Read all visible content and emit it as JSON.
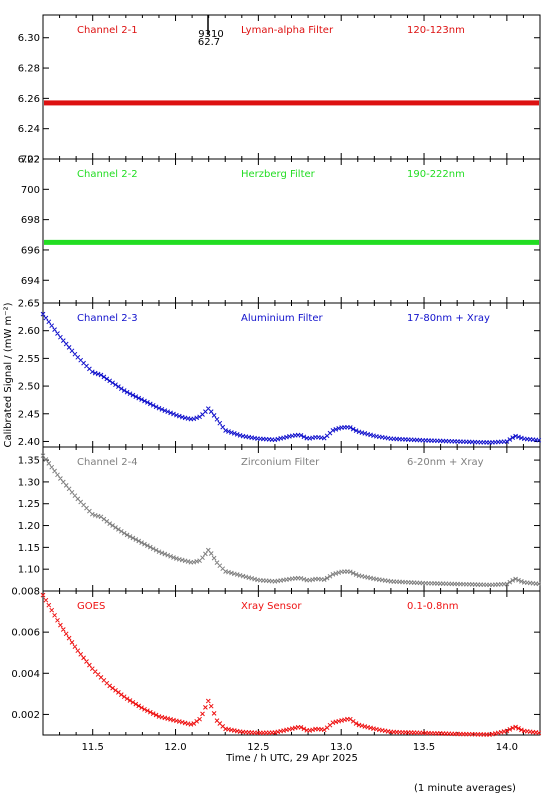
{
  "figure": {
    "ylabel": "Calibrated Signal / (mW m⁻²)",
    "xlabel": "Time / h UTC, 29 Apr 2025",
    "note": "(1 minute averages)",
    "top_marker": {
      "line1": "9310",
      "line2": "62.7"
    }
  },
  "chart_data": [
    {
      "type": "scatter",
      "panel": "Channel 2-1",
      "header": [
        "Channel 2-1",
        "Lyman-alpha Filter",
        "120-123nm"
      ],
      "color": "#dd1111",
      "xlim": [
        11.2,
        14.2
      ],
      "ylim": [
        6.22,
        6.315
      ],
      "yticks": [
        "6.22",
        "6.24",
        "6.26",
        "6.28",
        "6.30"
      ],
      "xticks": [
        "11.5",
        "12.0",
        "12.5",
        "13.0",
        "13.5",
        "14.0"
      ],
      "series": [
        {
          "x": [
            11.2,
            14.2
          ],
          "y": [
            6.257,
            6.257
          ],
          "style": "flat"
        }
      ]
    },
    {
      "type": "scatter",
      "panel": "Channel 2-2",
      "header": [
        "Channel 2-2",
        "Herzberg Filter",
        "190-222nm"
      ],
      "color": "#22dd22",
      "xlim": [
        11.2,
        14.2
      ],
      "ylim": [
        692.5,
        702
      ],
      "yticks": [
        "694",
        "696",
        "698",
        "700",
        "702"
      ],
      "xticks": [
        "11.5",
        "12.0",
        "12.5",
        "13.0",
        "13.5",
        "14.0"
      ],
      "series": [
        {
          "x": [
            11.2,
            14.2
          ],
          "y": [
            696.5,
            696.5
          ],
          "style": "flat"
        }
      ]
    },
    {
      "type": "scatter",
      "panel": "Channel 2-3",
      "header": [
        "Channel 2-3",
        "Aluminium Filter",
        "17-80nm + Xray"
      ],
      "color": "#1111cc",
      "xlim": [
        11.2,
        14.2
      ],
      "ylim": [
        2.39,
        2.65
      ],
      "yticks": [
        "2.40",
        "2.45",
        "2.50",
        "2.55",
        "2.60",
        "2.65"
      ],
      "xticks": [
        "11.5",
        "12.0",
        "12.5",
        "13.0",
        "13.5",
        "14.0"
      ],
      "series": [
        {
          "x": [
            11.2,
            11.3,
            11.4,
            11.5,
            11.55,
            11.6,
            11.7,
            11.8,
            11.9,
            12.0,
            12.05,
            12.1,
            12.15,
            12.2,
            12.25,
            12.3,
            12.4,
            12.5,
            12.6,
            12.7,
            12.75,
            12.8,
            12.85,
            12.9,
            12.95,
            13.0,
            13.05,
            13.1,
            13.2,
            13.3,
            13.5,
            13.7,
            13.9,
            14.0,
            14.05,
            14.1,
            14.2
          ],
          "y": [
            2.63,
            2.59,
            2.555,
            2.525,
            2.52,
            2.51,
            2.49,
            2.475,
            2.46,
            2.448,
            2.443,
            2.44,
            2.445,
            2.46,
            2.44,
            2.42,
            2.41,
            2.405,
            2.403,
            2.41,
            2.412,
            2.405,
            2.408,
            2.406,
            2.42,
            2.425,
            2.426,
            2.418,
            2.41,
            2.405,
            2.402,
            2.4,
            2.398,
            2.4,
            2.41,
            2.405,
            2.402
          ]
        }
      ]
    },
    {
      "type": "scatter",
      "panel": "Channel 2-4",
      "header": [
        "Channel 2-4",
        "Zirconium Filter",
        "6-20nm + Xray"
      ],
      "color": "#7f7f7f",
      "xlim": [
        11.2,
        14.2
      ],
      "ylim": [
        1.05,
        1.38
      ],
      "yticks": [
        "1.10",
        "1.15",
        "1.20",
        "1.25",
        "1.30",
        "1.35"
      ],
      "xticks": [
        "11.5",
        "12.0",
        "12.5",
        "13.0",
        "13.5",
        "14.0"
      ],
      "series": [
        {
          "x": [
            11.2,
            11.3,
            11.4,
            11.5,
            11.55,
            11.6,
            11.7,
            11.8,
            11.9,
            12.0,
            12.05,
            12.1,
            12.15,
            12.2,
            12.25,
            12.3,
            12.4,
            12.5,
            12.6,
            12.7,
            12.75,
            12.8,
            12.85,
            12.9,
            12.95,
            13.0,
            13.05,
            13.1,
            13.2,
            13.3,
            13.5,
            13.7,
            13.9,
            14.0,
            14.05,
            14.1,
            14.2
          ],
          "y": [
            1.36,
            1.31,
            1.265,
            1.225,
            1.22,
            1.205,
            1.18,
            1.16,
            1.14,
            1.125,
            1.12,
            1.115,
            1.12,
            1.145,
            1.115,
            1.095,
            1.085,
            1.075,
            1.072,
            1.078,
            1.08,
            1.074,
            1.078,
            1.076,
            1.088,
            1.094,
            1.095,
            1.086,
            1.078,
            1.072,
            1.068,
            1.066,
            1.064,
            1.066,
            1.078,
            1.07,
            1.066
          ]
        }
      ]
    },
    {
      "type": "scatter",
      "panel": "GOES",
      "header": [
        "GOES",
        "Xray Sensor",
        "0.1-0.8nm"
      ],
      "color": "#ee1111",
      "xlim": [
        11.2,
        14.2
      ],
      "ylim": [
        0.001,
        0.008
      ],
      "yticks": [
        "0.002",
        "0.004",
        "0.006",
        "0.008"
      ],
      "xticks": [
        "11.5",
        "12.0",
        "12.5",
        "13.0",
        "13.5",
        "14.0"
      ],
      "series": [
        {
          "x": [
            11.2,
            11.3,
            11.4,
            11.5,
            11.6,
            11.7,
            11.8,
            11.9,
            12.0,
            12.05,
            12.1,
            12.15,
            12.2,
            12.25,
            12.3,
            12.4,
            12.5,
            12.6,
            12.7,
            12.75,
            12.8,
            12.85,
            12.9,
            12.95,
            13.0,
            13.05,
            13.1,
            13.2,
            13.3,
            13.5,
            13.7,
            13.9,
            14.0,
            14.05,
            14.1,
            14.2
          ],
          "y": [
            0.0078,
            0.0064,
            0.0052,
            0.0042,
            0.0034,
            0.0028,
            0.0023,
            0.0019,
            0.0017,
            0.0016,
            0.0015,
            0.0018,
            0.0027,
            0.0017,
            0.0013,
            0.00115,
            0.0011,
            0.00112,
            0.0013,
            0.0014,
            0.0012,
            0.0013,
            0.00125,
            0.0016,
            0.0017,
            0.0018,
            0.0015,
            0.0013,
            0.00115,
            0.0011,
            0.00105,
            0.00102,
            0.0012,
            0.0014,
            0.0012,
            0.0011
          ]
        }
      ]
    }
  ]
}
